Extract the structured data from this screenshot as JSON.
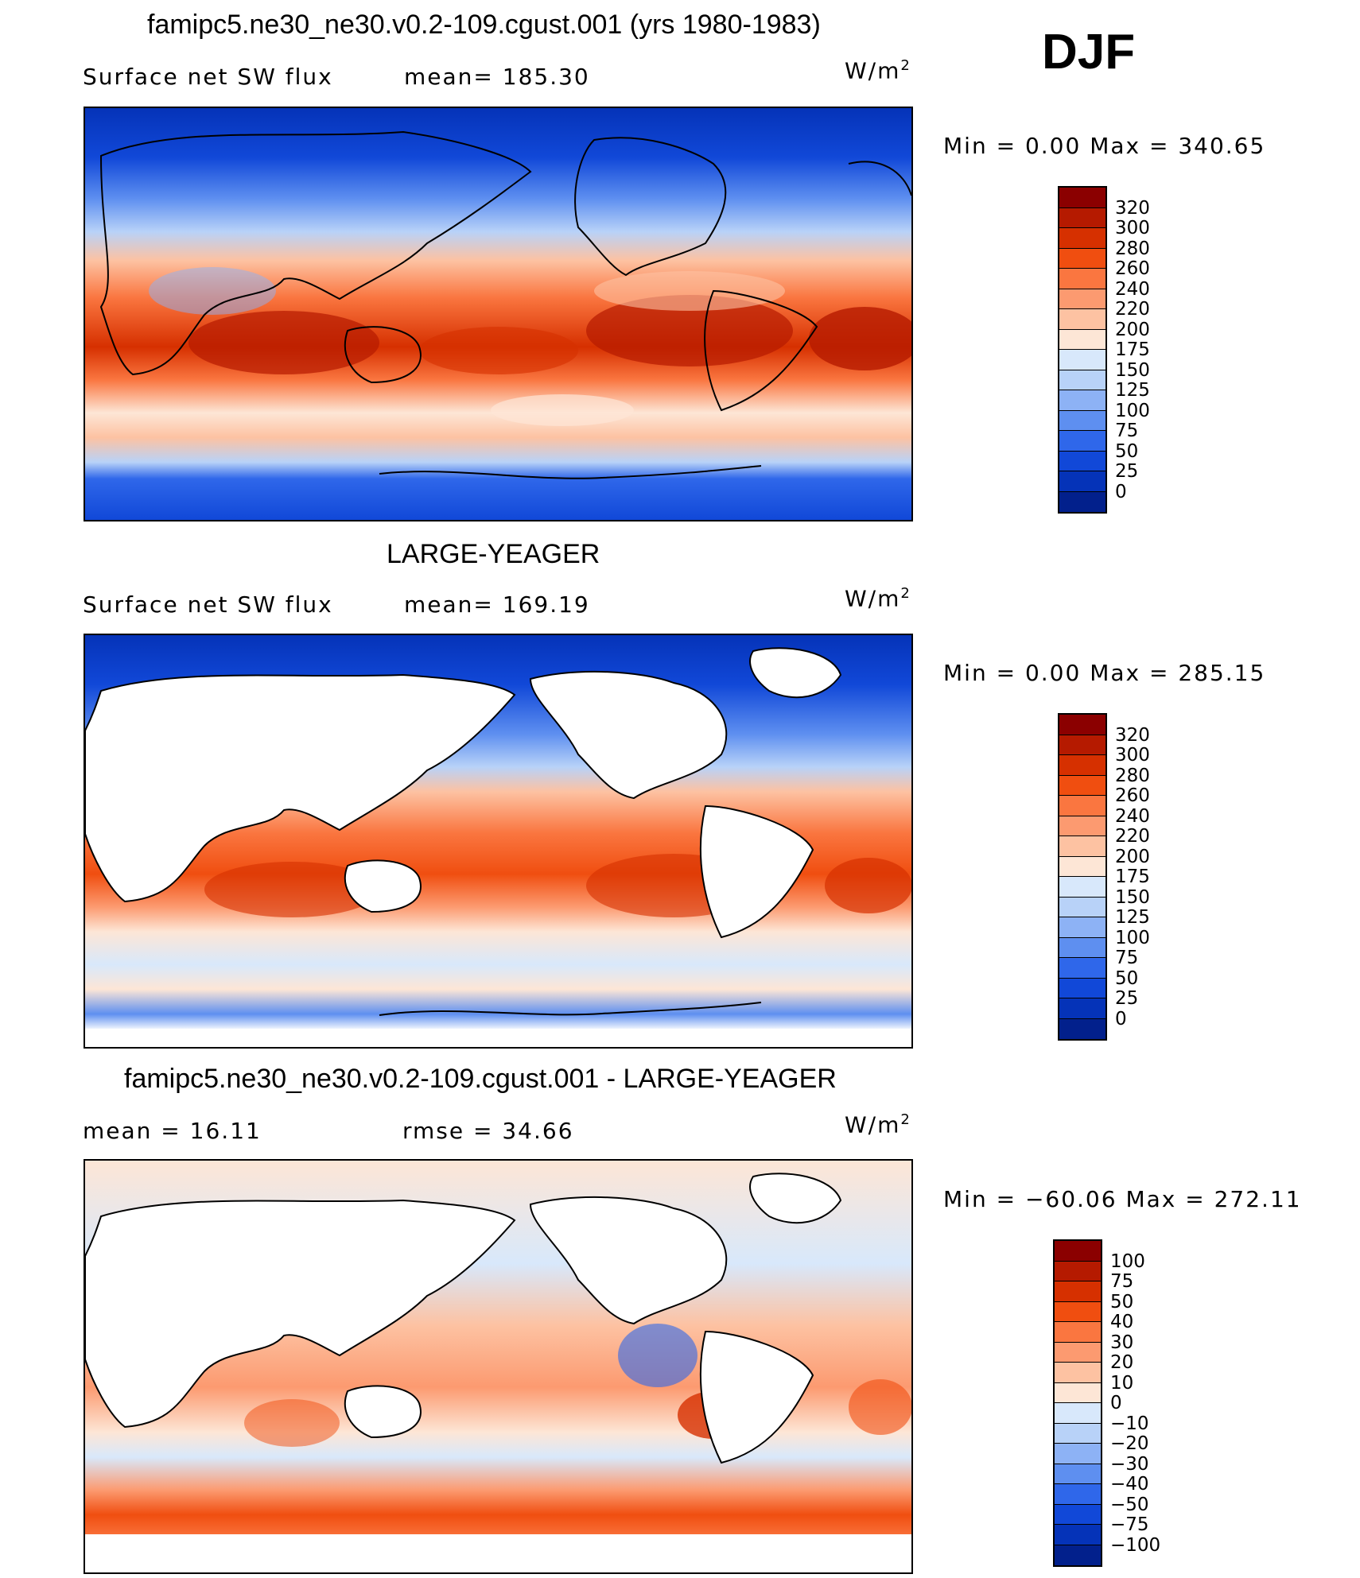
{
  "season": "DJF",
  "units": "W/m",
  "units_sup": "2",
  "chart_data": [
    {
      "type": "heatmap",
      "title": "famipc5.ne30_ne30.v0.2-109.cgust.001 (yrs 1980-1983)",
      "variable": "Surface net SW flux",
      "mean_text": "mean=  185.30",
      "mean": 185.3,
      "minmax_text": "Min  =     0.00  Max  =  340.65",
      "min": 0.0,
      "max": 340.65,
      "levels": [
        "320",
        "300",
        "280",
        "260",
        "240",
        "220",
        "200",
        "175",
        "150",
        "125",
        "100",
        "75",
        "50",
        "25",
        "0"
      ],
      "colors": [
        "#8b0000",
        "#b51a00",
        "#d63000",
        "#f04e10",
        "#fa7640",
        "#fc9a70",
        "#fdc2a2",
        "#fde6d6",
        "#d8e8fb",
        "#b8d2f8",
        "#8db2f5",
        "#5e8ff0",
        "#2f67ea",
        "#1148d8",
        "#0533b8",
        "#02208c"
      ],
      "land_masked": false
    },
    {
      "type": "heatmap",
      "title": "LARGE-YEAGER",
      "variable": "Surface net SW flux",
      "mean_text": "mean=  169.19",
      "mean": 169.19,
      "minmax_text": "Min  =     0.00  Max  =  285.15",
      "min": 0.0,
      "max": 285.15,
      "levels": [
        "320",
        "300",
        "280",
        "260",
        "240",
        "220",
        "200",
        "175",
        "150",
        "125",
        "100",
        "75",
        "50",
        "25",
        "0"
      ],
      "colors": [
        "#8b0000",
        "#b51a00",
        "#d63000",
        "#f04e10",
        "#fa7640",
        "#fc9a70",
        "#fdc2a2",
        "#fde6d6",
        "#d8e8fb",
        "#b8d2f8",
        "#8db2f5",
        "#5e8ff0",
        "#2f67ea",
        "#1148d8",
        "#0533b8",
        "#02208c"
      ],
      "land_masked": true
    },
    {
      "type": "heatmap",
      "title": "famipc5.ne30_ne30.v0.2-109.cgust.001 - LARGE-YEAGER",
      "mean_text": "mean  =     16.11",
      "mean": 16.11,
      "rmse_text": "rmse  =     34.66",
      "rmse": 34.66,
      "minmax_text": "Min  =  −60.06  Max  =  272.11",
      "min": -60.06,
      "max": 272.11,
      "levels": [
        "100",
        "75",
        "50",
        "40",
        "30",
        "20",
        "10",
        "0",
        "−10",
        "−20",
        "−30",
        "−40",
        "−50",
        "−75",
        "−100"
      ],
      "colors": [
        "#8b0000",
        "#b51a00",
        "#d63000",
        "#f04e10",
        "#fa7640",
        "#fc9a70",
        "#fdc2a2",
        "#fde6d6",
        "#d8e8fb",
        "#b8d2f8",
        "#8db2f5",
        "#5e8ff0",
        "#2f67ea",
        "#1148d8",
        "#0533b8",
        "#02208c"
      ],
      "land_masked": true
    }
  ]
}
